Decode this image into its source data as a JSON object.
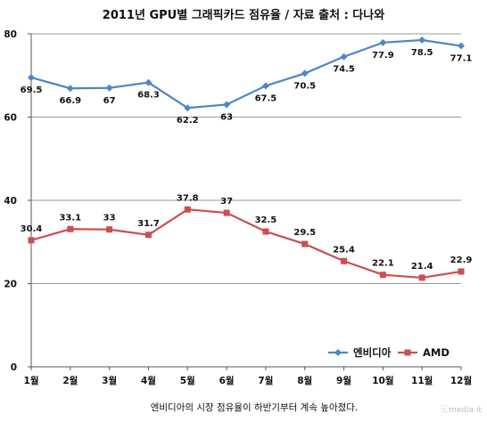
{
  "chart_data": {
    "type": "line",
    "title": "2011년 GPU별 그래픽카드 점유율 / 자료 출처 : 다나와",
    "categories": [
      "1월",
      "2월",
      "3월",
      "4월",
      "5월",
      "6월",
      "7월",
      "8월",
      "9월",
      "10월",
      "11월",
      "12월"
    ],
    "series": [
      {
        "name": "엔비디아",
        "color": "#4f86c6",
        "marker": "diamond",
        "values": [
          69.5,
          66.9,
          67,
          68.3,
          62.2,
          63,
          67.5,
          70.5,
          74.5,
          77.9,
          78.5,
          77.1
        ],
        "labels": [
          "69.5",
          "66.9",
          "67",
          "68.3",
          "62.2",
          "63",
          "67.5",
          "70.5",
          "74.5",
          "77.9",
          "78.5",
          "77.1"
        ]
      },
      {
        "name": "AMD",
        "color": "#c9504f",
        "marker": "square",
        "values": [
          30.4,
          33.1,
          33,
          31.7,
          37.8,
          37,
          32.5,
          29.5,
          25.4,
          22.1,
          21.4,
          22.9
        ],
        "labels": [
          "30.4",
          "33.1",
          "33",
          "31.7",
          "37.8",
          "37",
          "32.5",
          "29.5",
          "25.4",
          "22.1",
          "21.4",
          "22.9"
        ]
      }
    ],
    "ylim": [
      0,
      80
    ],
    "yticks": [
      "0",
      "20",
      "40",
      "60",
      "80"
    ],
    "grid": true,
    "legend": "bottom-right",
    "caption": "엔비디아의 시장 점유율이 하반기부터 계속 높아졌다.",
    "watermark": "ⓒmedia it"
  }
}
